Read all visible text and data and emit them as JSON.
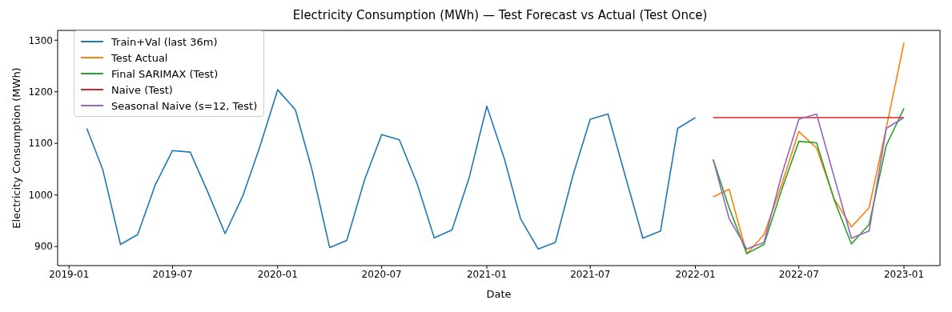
{
  "chart_data": {
    "type": "line",
    "title": "Electricity Consumption (MWh) — Test Forecast vs Actual (Test Once)",
    "xlabel": "Date",
    "ylabel": "Electricity Consumption (MWh)",
    "xlim": [
      "2018-12-12",
      "2023-03-05"
    ],
    "xticks": [
      "2019-01",
      "2019-07",
      "2020-01",
      "2020-07",
      "2021-01",
      "2021-07",
      "2022-01",
      "2022-07",
      "2023-01"
    ],
    "ylim": [
      863,
      1319
    ],
    "yticks": [
      900,
      1000,
      1100,
      1200,
      1300
    ],
    "grid": false,
    "legend": "top left",
    "marker": "none",
    "line_style": "solid",
    "series": [
      {
        "name": "Train+Val (last 36m)",
        "color": "#1f77b4",
        "x": [
          "2019-02",
          "2019-03",
          "2019-04",
          "2019-05",
          "2019-06",
          "2019-07",
          "2019-08",
          "2019-09",
          "2019-10",
          "2019-11",
          "2019-12",
          "2020-01",
          "2020-02",
          "2020-03",
          "2020-04",
          "2020-05",
          "2020-06",
          "2020-07",
          "2020-08",
          "2020-09",
          "2020-10",
          "2020-11",
          "2020-12",
          "2021-01",
          "2021-02",
          "2021-03",
          "2021-04",
          "2021-05",
          "2021-06",
          "2021-07",
          "2021-08",
          "2021-09",
          "2021-10",
          "2021-11",
          "2021-12",
          "2022-01"
        ],
        "values": [
          1129,
          1049,
          904,
          923,
          1020,
          1086,
          1083,
          1005,
          925,
          998,
          1094,
          1204,
          1165,
          1049,
          898,
          912,
          1029,
          1117,
          1107,
          1022,
          917,
          932,
          1033,
          1172,
          1069,
          954,
          895,
          908,
          1039,
          1147,
          1157,
          1034,
          916,
          930,
          1129,
          1150
        ]
      },
      {
        "name": "Test Actual",
        "color": "#ff7f0e",
        "x": [
          "2022-02",
          "2022-03",
          "2022-04",
          "2022-05",
          "2022-06",
          "2022-07",
          "2022-08",
          "2022-09",
          "2022-10",
          "2022-11",
          "2022-12",
          "2023-01"
        ],
        "values": [
          996,
          1011,
          886,
          923,
          1020,
          1123,
          1091,
          992,
          938,
          975,
          1130,
          1295
        ]
      },
      {
        "name": "Final SARIMAX (Test)",
        "color": "#2ca02c",
        "x": [
          "2022-02",
          "2022-03",
          "2022-04",
          "2022-05",
          "2022-06",
          "2022-07",
          "2022-08",
          "2022-09",
          "2022-10",
          "2022-11",
          "2022-12",
          "2023-01"
        ],
        "values": [
          1069,
          975,
          886,
          904,
          1010,
          1104,
          1101,
          990,
          905,
          943,
          1096,
          1168
        ]
      },
      {
        "name": "Naive (Test)",
        "color": "#d62728",
        "x": [
          "2022-02",
          "2022-03",
          "2022-04",
          "2022-05",
          "2022-06",
          "2022-07",
          "2022-08",
          "2022-09",
          "2022-10",
          "2022-11",
          "2022-12",
          "2023-01"
        ],
        "values": [
          1150,
          1150,
          1150,
          1150,
          1150,
          1150,
          1150,
          1150,
          1150,
          1150,
          1150,
          1150
        ]
      },
      {
        "name": "Seasonal Naive (s=12, Test)",
        "color": "#9467bd",
        "x": [
          "2022-02",
          "2022-03",
          "2022-04",
          "2022-05",
          "2022-06",
          "2022-07",
          "2022-08",
          "2022-09",
          "2022-10",
          "2022-11",
          "2022-12",
          "2023-01"
        ],
        "values": [
          1069,
          954,
          895,
          908,
          1039,
          1147,
          1157,
          1034,
          916,
          930,
          1129,
          1150
        ]
      }
    ]
  }
}
